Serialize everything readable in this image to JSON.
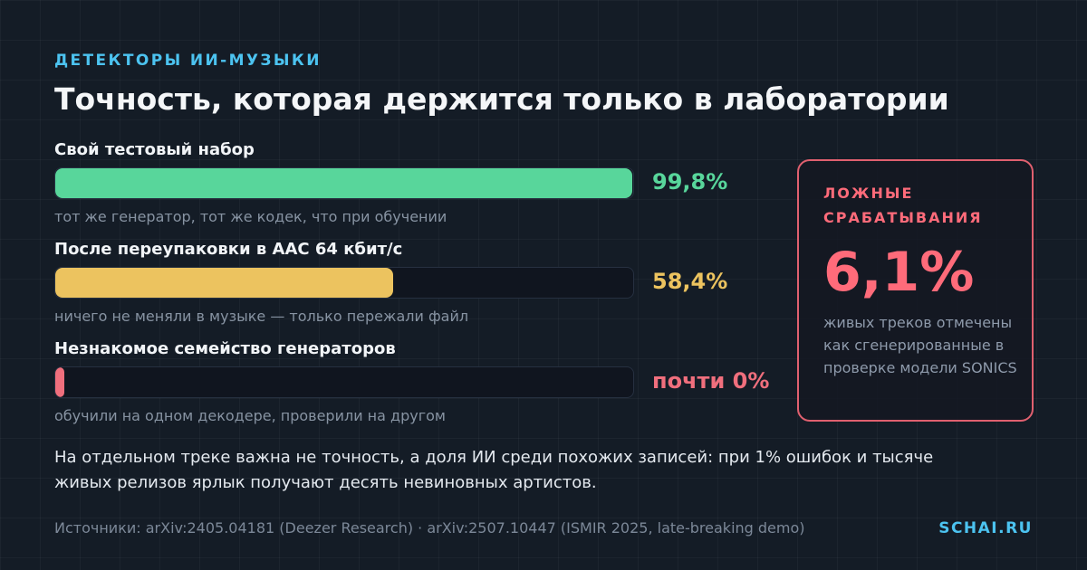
{
  "header": {
    "kicker": "ДЕТЕКТОРЫ ИИ-МУЗЫКИ",
    "title": "Точность, которая держится только в лаборатории"
  },
  "chart_data": {
    "type": "bar",
    "orientation": "horizontal",
    "xlim": [
      0,
      100
    ],
    "unit": "%",
    "bars": [
      {
        "label": "Свой тестовый набор",
        "value": 99.8,
        "value_label": "99,8%",
        "note": "тот же генератор, тот же кодек, что при обучении",
        "color": "#58d69b"
      },
      {
        "label": "После переупаковки в AAC 64 кбит/с",
        "value": 58.4,
        "value_label": "58,4%",
        "note": "ничего не меняли в музыке — только пережали файл",
        "color": "#ecc35f"
      },
      {
        "label": "Незнакомое семейство генераторов",
        "value": 0.8,
        "value_label": "почти 0%",
        "note": "обучили на одном декодере, проверили на другом",
        "color": "#f06f7d"
      }
    ]
  },
  "card": {
    "heading": "ЛОЖНЫЕ СРАБАТЫВАНИЯ",
    "value": "6,1%",
    "text": "живых треков отмечены как сгенерированные в проверке модели SONICS",
    "color": "#ff6b7a"
  },
  "footer": {
    "conclusion": "На отдельном треке важна не точность, а доля ИИ среди похожих записей: при 1% ошибок и тысяче живых релизов ярлык получают десять невиновных артистов.",
    "sources": "Источники: arXiv:2405.04181 (Deezer Research) · arXiv:2507.10447 (ISMIR 2025, late-breaking demo)",
    "brand": "SCHAI.RU"
  }
}
